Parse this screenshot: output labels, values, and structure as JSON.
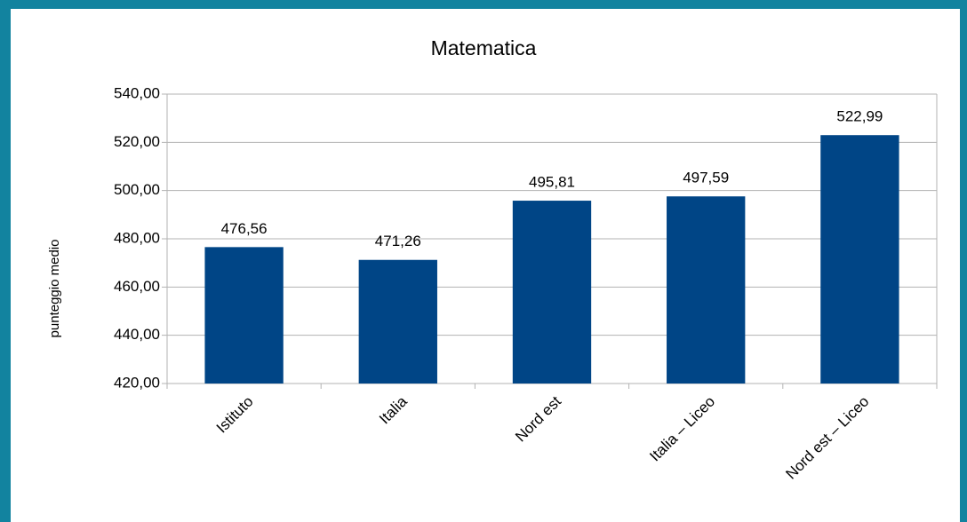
{
  "chart_data": {
    "type": "bar",
    "title": "Matematica",
    "y_label": "punteggio medio",
    "categories": [
      "Istituto",
      "Italia",
      "Nord est",
      "Italia – Liceo",
      "Nord est – Liceo"
    ],
    "values": [
      476.56,
      471.26,
      495.81,
      497.59,
      522.99
    ],
    "value_labels": [
      "476,56",
      "471,26",
      "495,81",
      "497,59",
      "522,99"
    ],
    "color": "#004586",
    "ylim": [
      420,
      540
    ],
    "yticks": [
      {
        "value": 420,
        "label": "420,00"
      },
      {
        "value": 440,
        "label": "440,00"
      },
      {
        "value": 460,
        "label": "460,00"
      },
      {
        "value": 480,
        "label": "480,00"
      },
      {
        "value": 500,
        "label": "500,00"
      },
      {
        "value": 520,
        "label": "520,00"
      },
      {
        "value": 540,
        "label": "540,00"
      }
    ],
    "grid": true
  }
}
